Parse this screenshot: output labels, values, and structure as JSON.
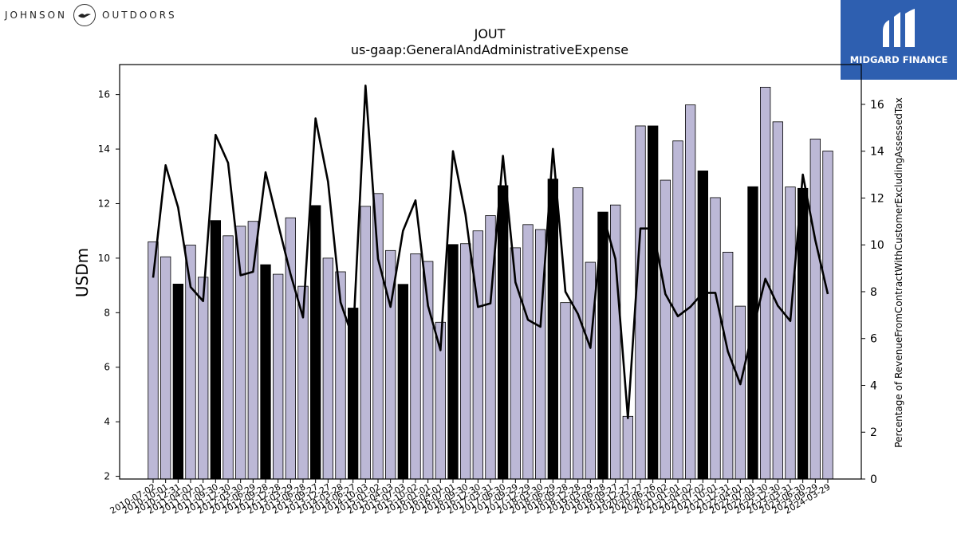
{
  "brand": {
    "left_text": "JOHNSON",
    "right_text": "OUTDOORS",
    "badge_text": "MIDGARD FINANCE"
  },
  "colors": {
    "bar_normal": "#bcb8d6",
    "bar_highlight": "#000000",
    "line": "#000000"
  },
  "chart_data": {
    "type": "bar",
    "title": "JOUT",
    "subtitle": "us-gaap:GeneralAndAdministrativeExpense",
    "ylabel": "USDm",
    "y2label": "Percentage of RevenueFromContractWithCustomerExcludingAssessedTax",
    "ylim": [
      1.9,
      17.1
    ],
    "yticks": [
      2,
      4,
      6,
      8,
      10,
      12,
      14,
      16
    ],
    "y2lim": [
      0,
      17.7
    ],
    "y2ticks": [
      0,
      2,
      4,
      6,
      8,
      10,
      12,
      14,
      16
    ],
    "categories": [
      "2010-07-02",
      "2010-10-01",
      "2010-12-31",
      "2011-04-01",
      "2011-07-01",
      "2011-09-30",
      "2011-12-30",
      "2012-03-30",
      "2012-06-29",
      "2012-09-28",
      "2012-12-28",
      "2013-03-29",
      "2013-06-28",
      "2013-09-27",
      "2013-12-27",
      "2014-03-28",
      "2014-06-27",
      "2014-10-03",
      "2015-01-02",
      "2015-04-03",
      "2015-07-03",
      "2015-10-02",
      "2016-01-01",
      "2016-04-01",
      "2016-07-01",
      "2016-09-30",
      "2016-12-30",
      "2017-03-31",
      "2017-06-30",
      "2017-09-29",
      "2017-12-29",
      "2018-03-30",
      "2018-06-29",
      "2018-09-28",
      "2018-12-28",
      "2019-03-29",
      "2019-06-28",
      "2019-09-27",
      "2019-12-27",
      "2020-03-27",
      "2020-06-26",
      "2020-10-02",
      "2021-01-01",
      "2021-04-02",
      "2021-07-02",
      "2021-10-01",
      "2021-12-31",
      "2022-04-01",
      "2022-07-01",
      "2022-09-30",
      "2022-12-30",
      "2023-03-31",
      "2023-06-30",
      "2023-09-29",
      "2024-03-29"
    ],
    "tick_labels": [
      "2010-07-02",
      "2010-10-01",
      "2010-12-31",
      "2011-04-01",
      "2011-07-01",
      "2011-09-30",
      "2011-12-30",
      "2012-03-30",
      "2012-06-29",
      "2012-09-28",
      "2012-12-28",
      "2013-03-29",
      "2013-06-28",
      "2013-09-27",
      "2013-12-27",
      "2014-03-28",
      "2014-06-27",
      "2014-10-03",
      "2015-01-02",
      "2015-04-03",
      "2015-07-03",
      "2015-10-02",
      "2016-01-01",
      "2016-04-01",
      "2016-07-01",
      "2016-09-30",
      "2016-12-30",
      "2017-03-31",
      "2017-06-30",
      "2017-09-29",
      "2017-12-29",
      "2018-03-30",
      "2018-06-29",
      "2018-09-28",
      "2018-12-28",
      "2019-03-29",
      "2019-06-28",
      "2019-09-27",
      "2019-12-27",
      "2020-03-27",
      "2020-06-26",
      "2020-10-02",
      "2021-01-01",
      "2021-04-02",
      "2021-07-02",
      "2021-10-01",
      "2021-12-31",
      "2022-04-01",
      "2022-07-01",
      "2022-09-30",
      "2022-12-30",
      "2023-03-31",
      "2023-06-30",
      "2023-09-29",
      "2024-03-29"
    ],
    "highlighted": [
      false,
      false,
      true,
      false,
      false,
      true,
      false,
      false,
      false,
      true,
      false,
      false,
      false,
      true,
      false,
      false,
      true,
      false,
      false,
      false,
      true,
      false,
      false,
      false,
      true,
      false,
      false,
      false,
      true,
      false,
      false,
      false,
      true,
      false,
      false,
      false,
      true,
      false,
      false,
      false,
      true,
      false,
      false,
      false,
      true,
      false,
      false,
      false,
      true,
      false,
      false,
      false,
      true,
      false,
      false
    ],
    "series": [
      {
        "axis": "left",
        "values": [
          10.6,
          10.05,
          9.05,
          10.48,
          9.3,
          11.38,
          10.82,
          11.17,
          11.35,
          9.76,
          9.41,
          11.48,
          8.97,
          11.93,
          10.0,
          9.5,
          8.17,
          11.9,
          12.37,
          10.28,
          9.04,
          10.16,
          9.88,
          7.65,
          10.5,
          10.53,
          11.0,
          11.56,
          12.66,
          10.38,
          11.23,
          11.05,
          12.9,
          8.37,
          12.58,
          9.85,
          11.69,
          11.95,
          4.2,
          14.85,
          14.85,
          12.86,
          14.3,
          15.62,
          13.2,
          12.22,
          10.22,
          8.24,
          12.62,
          16.27,
          15.0,
          12.61,
          12.56,
          14.37,
          13.93
        ]
      },
      {
        "axis": "right",
        "type": "line",
        "values": [
          8.6,
          13.4,
          11.6,
          8.2,
          7.6,
          14.7,
          13.5,
          8.7,
          8.85,
          13.1,
          10.9,
          8.75,
          6.9,
          15.4,
          12.7,
          7.55,
          6.0,
          16.8,
          9.4,
          7.35,
          10.6,
          11.9,
          7.4,
          5.5,
          14.0,
          11.3,
          7.35,
          7.5,
          13.8,
          8.4,
          6.8,
          6.5,
          14.1,
          8.0,
          7.05,
          5.6,
          11.3,
          9.4,
          2.6,
          10.7,
          10.7,
          7.9,
          6.95,
          7.35,
          7.95,
          7.95,
          5.45,
          4.05,
          6.35,
          8.55,
          7.4,
          6.75,
          13.0,
          10.2,
          7.9
        ]
      }
    ],
    "grid": false,
    "legend": "none"
  }
}
